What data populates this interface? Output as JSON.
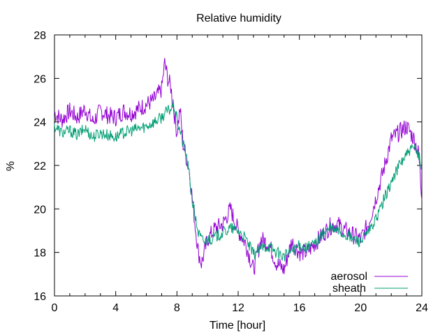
{
  "chart_data": {
    "type": "line",
    "title": "Relative humidity",
    "xlabel": "Time [hour]",
    "ylabel": "%",
    "xlim": [
      0,
      24
    ],
    "ylim": [
      16,
      28
    ],
    "xticks": [
      0,
      4,
      8,
      12,
      16,
      20,
      24
    ],
    "yticks": [
      16,
      18,
      20,
      22,
      24,
      26,
      28
    ],
    "grid": false,
    "legend_position": "bottom-right",
    "series": [
      {
        "name": "aerosol",
        "color": "#9400d3",
        "x": [
          0,
          0.5,
          1,
          1.5,
          2,
          2.5,
          3,
          3.5,
          4,
          4.5,
          5,
          5.5,
          6,
          6.5,
          7,
          7.2,
          7.4,
          7.6,
          7.8,
          8,
          8.2,
          8.4,
          8.6,
          8.8,
          9,
          9.2,
          9.4,
          9.6,
          9.8,
          10,
          10.5,
          11,
          11.5,
          12,
          12.5,
          13,
          13.5,
          14,
          14.5,
          15,
          15.5,
          16,
          16.5,
          17,
          17.5,
          18,
          18.5,
          19,
          19.5,
          20,
          20.5,
          21,
          21.5,
          22,
          22.5,
          23,
          23.5,
          23.8,
          24
        ],
        "y": [
          24.4,
          24.1,
          24.5,
          24.2,
          24.6,
          24.0,
          24.5,
          24.3,
          24.2,
          24.5,
          24.4,
          24.6,
          24.8,
          25.0,
          25.5,
          26.7,
          26.0,
          25.6,
          24.5,
          23.5,
          24.6,
          23.0,
          22.4,
          21.8,
          20.5,
          19.2,
          18.0,
          17.5,
          18.0,
          18.6,
          19.1,
          19.3,
          20.0,
          19.0,
          18.4,
          17.2,
          18.6,
          18.4,
          17.5,
          17.2,
          18.5,
          18.0,
          18.0,
          18.4,
          18.8,
          19.2,
          19.3,
          19.0,
          18.8,
          18.6,
          19.3,
          20.5,
          21.8,
          23.2,
          23.5,
          23.8,
          23.2,
          22.5,
          20.4
        ]
      },
      {
        "name": "sheath",
        "color": "#009e73",
        "x": [
          0,
          0.5,
          1,
          1.5,
          2,
          2.5,
          3,
          3.5,
          4,
          4.5,
          5,
          5.5,
          6,
          6.5,
          7,
          7.2,
          7.4,
          7.6,
          7.8,
          8,
          8.2,
          8.4,
          8.6,
          8.8,
          9,
          9.2,
          9.4,
          9.6,
          9.8,
          10,
          10.5,
          11,
          11.5,
          12,
          12.5,
          13,
          13.5,
          14,
          14.5,
          15,
          15.5,
          16,
          16.5,
          17,
          17.5,
          18,
          18.5,
          19,
          19.5,
          20,
          20.5,
          21,
          21.5,
          22,
          22.5,
          23,
          23.5,
          23.8,
          24
        ],
        "y": [
          23.8,
          23.5,
          23.6,
          23.4,
          23.7,
          23.3,
          23.5,
          23.4,
          23.3,
          23.5,
          23.6,
          23.7,
          23.8,
          24.0,
          24.2,
          24.4,
          24.5,
          24.6,
          24.8,
          24.1,
          23.6,
          23.0,
          22.5,
          21.6,
          20.4,
          19.6,
          18.9,
          18.6,
          18.5,
          18.6,
          18.7,
          18.9,
          19.1,
          19.0,
          18.6,
          17.9,
          18.2,
          18.3,
          18.0,
          17.8,
          18.1,
          18.3,
          18.2,
          18.4,
          18.8,
          19.1,
          19.0,
          18.8,
          18.6,
          18.5,
          18.9,
          19.5,
          20.4,
          21.2,
          22.0,
          22.5,
          22.8,
          22.5,
          21.8
        ]
      }
    ]
  }
}
